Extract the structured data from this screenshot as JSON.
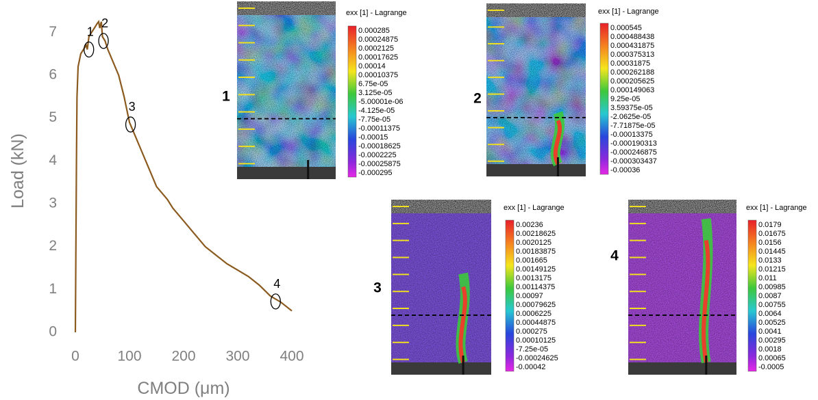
{
  "chart_data": {
    "type": "line",
    "xlabel": "CMOD (μm)",
    "ylabel": "Load (kN)",
    "x": [
      0,
      1,
      2,
      3,
      5,
      10,
      15,
      20,
      22,
      25,
      30,
      35,
      40,
      43,
      45,
      48,
      50,
      55,
      60,
      70,
      80,
      90,
      100,
      110,
      120,
      130,
      140,
      150,
      160,
      170,
      180,
      200,
      220,
      240,
      260,
      280,
      300,
      320,
      340,
      360,
      380,
      400
    ],
    "values": [
      0,
      2,
      4,
      5.5,
      6.2,
      6.5,
      6.6,
      6.7,
      6.6,
      6.9,
      7.0,
      7.1,
      7.2,
      7.25,
      7.1,
      7.25,
      6.9,
      6.8,
      6.6,
      6.3,
      6.0,
      5.5,
      4.9,
      4.6,
      4.3,
      4.0,
      3.7,
      3.4,
      3.25,
      3.1,
      2.9,
      2.6,
      2.3,
      2.0,
      1.8,
      1.6,
      1.45,
      1.3,
      1.1,
      0.85,
      0.7,
      0.5
    ],
    "color": "#8b5a1e",
    "xlim": [
      0,
      400
    ],
    "ylim": [
      0,
      7.5
    ],
    "xticks": [
      0,
      100,
      200,
      300,
      400
    ],
    "yticks": [
      0,
      1,
      2,
      3,
      4,
      5,
      6,
      7
    ],
    "annotations": [
      {
        "text": "1",
        "x": 25,
        "y": 6.6
      },
      {
        "text": "2",
        "x": 52,
        "y": 6.8
      },
      {
        "text": "3",
        "x": 102,
        "y": 4.85
      },
      {
        "text": "4",
        "x": 370,
        "y": 0.72
      }
    ]
  },
  "panels": [
    {
      "label": "1",
      "legend_title": "exx [1] - Lagrange",
      "scale_labels": [
        "0.000285",
        "0.00024875",
        "0.0002125",
        "0.00017625",
        "0.00014",
        "0.00010375",
        "6.75e-05",
        "3.125e-05",
        "-5.00001e-06",
        "-4.125e-05",
        "-7.75e-05",
        "-0.00011375",
        "-0.00015",
        "-0.00018625",
        "-0.0002225",
        "-0.00025875",
        "-0.000295"
      ]
    },
    {
      "label": "2",
      "legend_title": "exx [1] - Lagrange",
      "scale_labels": [
        "0.000545",
        "0.000488438",
        "0.000431875",
        "0.000375313",
        "0.00031875",
        "0.000262188",
        "0.000205625",
        "0.000149063",
        "9.25e-05",
        "3.59375e-05",
        "-2.0625e-05",
        "-7.71875e-05",
        "-0.00013375",
        "-0.000190313",
        "-0.000246875",
        "-0.000303437",
        "-0.00036"
      ]
    },
    {
      "label": "3",
      "legend_title": "exx [1] - Lagrange",
      "scale_labels": [
        "0.00236",
        "0.00218625",
        "0.0020125",
        "0.00183875",
        "0.001665",
        "0.00149125",
        "0.0013175",
        "0.00114375",
        "0.00097",
        "0.00079625",
        "0.0006225",
        "0.00044875",
        "0.000275",
        "0.00010125",
        "-7.25e-05",
        "-0.00024625",
        "-0.00042"
      ]
    },
    {
      "label": "4",
      "legend_title": "exx [1] - Lagrange",
      "scale_labels": [
        "0.0179",
        "0.01675",
        "0.0156",
        "0.01445",
        "0.0133",
        "0.01215",
        "0.011",
        "0.00985",
        "0.0087",
        "0.00755",
        "0.0064",
        "0.00525",
        "0.0041",
        "0.00295",
        "0.0018",
        "0.00065",
        "-0.0005"
      ]
    }
  ]
}
